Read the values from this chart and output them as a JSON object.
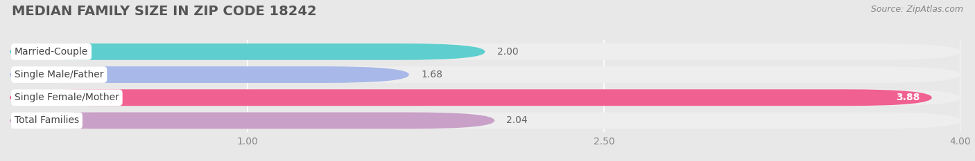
{
  "title": "MEDIAN FAMILY SIZE IN ZIP CODE 18242",
  "source": "Source: ZipAtlas.com",
  "categories": [
    "Married-Couple",
    "Single Male/Father",
    "Single Female/Mother",
    "Total Families"
  ],
  "values": [
    2.0,
    1.68,
    3.88,
    2.04
  ],
  "bar_colors": [
    "#5ecece",
    "#a8b8e8",
    "#f06090",
    "#c8a0c8"
  ],
  "bar_bg_colors": [
    "#eeeeee",
    "#eeeeee",
    "#eeeeee",
    "#eeeeee"
  ],
  "xlim": [
    0,
    4.0
  ],
  "xmin": 0,
  "xticks": [
    1.0,
    2.5,
    4.0
  ],
  "value_labels": [
    "2.00",
    "1.68",
    "3.88",
    "2.04"
  ],
  "title_fontsize": 14,
  "source_fontsize": 9,
  "bar_label_fontsize": 10,
  "value_fontsize": 10,
  "tick_fontsize": 10,
  "background_color": "#e8e8e8",
  "inter_bar_color": "#ffffff",
  "bar_height": 0.72,
  "value_label_inside_3": true
}
